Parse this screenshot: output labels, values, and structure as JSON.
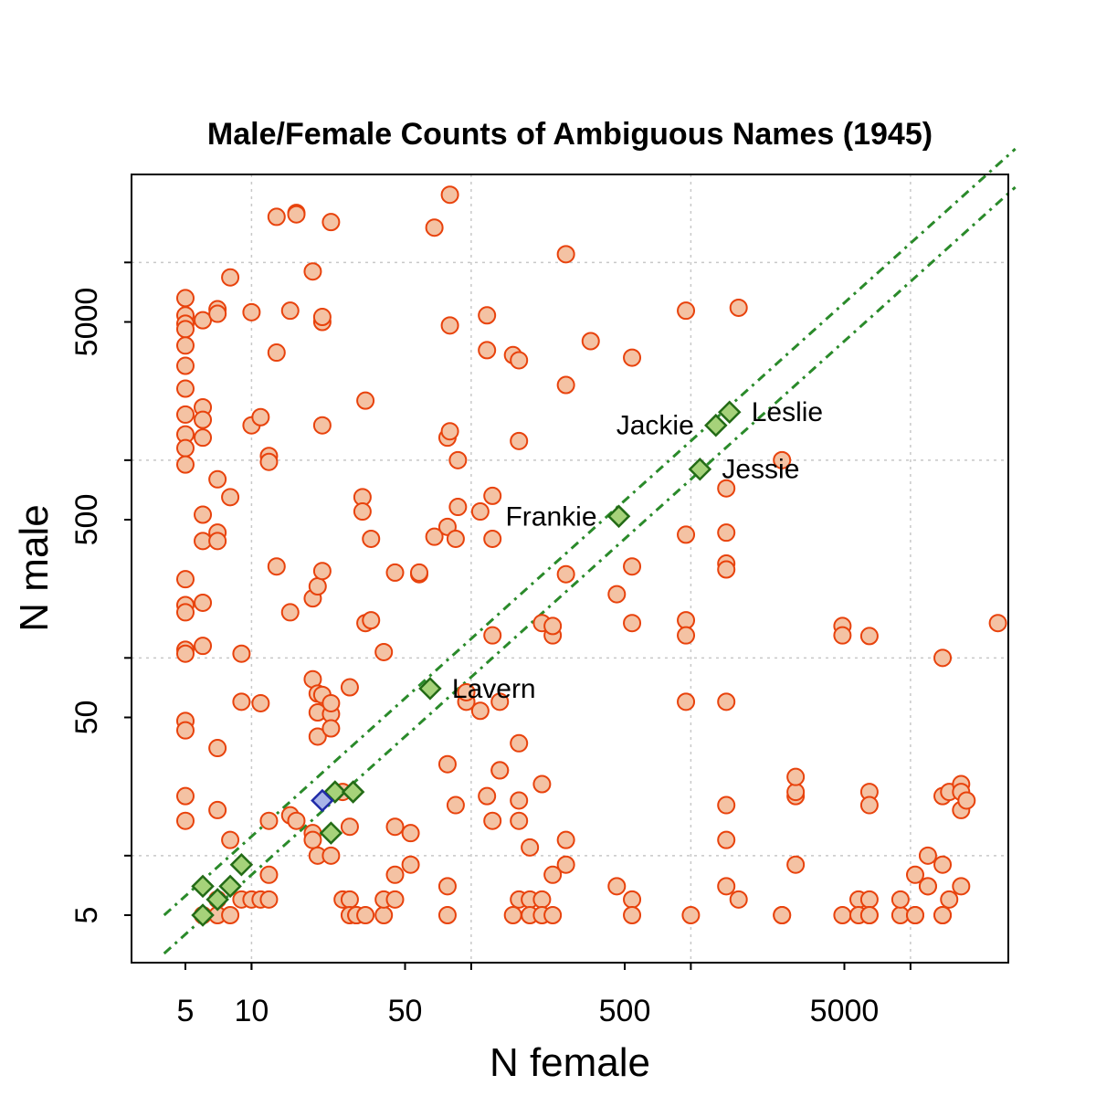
{
  "chart_data": {
    "type": "scatter",
    "title": "Male/Female Counts of Ambiguous Names (1945)",
    "xlabel": "N female",
    "ylabel": "N male",
    "scale": "log",
    "xlim": [
      3.3,
      25000
    ],
    "ylim": [
      3.3,
      25000
    ],
    "x_ticks": [
      5,
      10,
      50,
      500,
      5000
    ],
    "y_ticks": [
      5,
      50,
      500,
      5000
    ],
    "grid": true,
    "colors": {
      "points_fill": "#f4c2a3",
      "points_stroke": "#e8420c",
      "highlight_fill": "#a6d27a",
      "highlight_stroke": "#236b16",
      "focus_fill": "#a8b4e8",
      "focus_stroke": "#1f2aa8",
      "reference_lines": "#2a8a2a"
    },
    "reference_lines": [
      {
        "style": "dash-dot",
        "male_to_female_ratio": 1.25
      },
      {
        "style": "dash-dot",
        "male_to_female_ratio": 0.8
      }
    ],
    "series": [
      {
        "marker": "circle",
        "points": [
          [
            5,
            6600
          ],
          [
            5,
            5400
          ],
          [
            5,
            4900
          ],
          [
            5,
            4600
          ],
          [
            5,
            3800
          ],
          [
            5,
            3000
          ],
          [
            5,
            2300
          ],
          [
            5,
            1700
          ],
          [
            5,
            1350
          ],
          [
            5,
            1150
          ],
          [
            5,
            950
          ],
          [
            5,
            250
          ],
          [
            5,
            185
          ],
          [
            5,
            170
          ],
          [
            5,
            110
          ],
          [
            5,
            105
          ],
          [
            5,
            48
          ],
          [
            5,
            43
          ],
          [
            5,
            20
          ],
          [
            5,
            15
          ],
          [
            6,
            5100
          ],
          [
            6,
            1850
          ],
          [
            6,
            1600
          ],
          [
            6,
            1300
          ],
          [
            6,
            530
          ],
          [
            6,
            390
          ],
          [
            6,
            190
          ],
          [
            6,
            115
          ],
          [
            6,
            5
          ],
          [
            7,
            5800
          ],
          [
            7,
            5500
          ],
          [
            7,
            800
          ],
          [
            7,
            430
          ],
          [
            7,
            390
          ],
          [
            7,
            35
          ],
          [
            7,
            17
          ],
          [
            7,
            5
          ],
          [
            7,
            6
          ],
          [
            8,
            8400
          ],
          [
            8,
            650
          ],
          [
            8,
            12
          ],
          [
            8,
            5
          ],
          [
            9,
            105
          ],
          [
            9,
            60
          ],
          [
            9,
            6
          ],
          [
            10,
            5600
          ],
          [
            10,
            1500
          ],
          [
            10,
            6
          ],
          [
            11,
            1650
          ],
          [
            11,
            59
          ],
          [
            11,
            6
          ],
          [
            12,
            1050
          ],
          [
            12,
            980
          ],
          [
            12,
            15
          ],
          [
            12,
            8
          ],
          [
            12,
            6
          ],
          [
            13,
            17000
          ],
          [
            13,
            290
          ],
          [
            13,
            3500
          ],
          [
            15,
            5700
          ],
          [
            15,
            170
          ],
          [
            15,
            16
          ],
          [
            16,
            17800
          ],
          [
            16,
            17500
          ],
          [
            16,
            15
          ],
          [
            19,
            13
          ],
          [
            19,
            200
          ],
          [
            19,
            9000
          ],
          [
            19,
            78
          ],
          [
            19,
            12
          ],
          [
            20,
            230
          ],
          [
            20,
            40
          ],
          [
            20,
            66
          ],
          [
            20,
            53
          ],
          [
            20,
            10
          ],
          [
            21,
            5000
          ],
          [
            21,
            5300
          ],
          [
            21,
            65
          ],
          [
            21,
            1500
          ],
          [
            21,
            275
          ],
          [
            23,
            16000
          ],
          [
            23,
            10
          ],
          [
            23,
            52
          ],
          [
            23,
            59
          ],
          [
            23,
            44
          ],
          [
            26,
            6
          ],
          [
            26,
            21
          ],
          [
            28,
            71
          ],
          [
            28,
            6
          ],
          [
            28,
            14
          ],
          [
            28,
            5
          ],
          [
            30,
            5
          ],
          [
            30,
            5
          ],
          [
            32,
            650
          ],
          [
            32,
            550
          ],
          [
            33,
            2000
          ],
          [
            33,
            150
          ],
          [
            33,
            5
          ],
          [
            35,
            400
          ],
          [
            35,
            155
          ],
          [
            40,
            107
          ],
          [
            40,
            5
          ],
          [
            40,
            6
          ],
          [
            45,
            270
          ],
          [
            45,
            14
          ],
          [
            45,
            6
          ],
          [
            45,
            8
          ],
          [
            53,
            9
          ],
          [
            53,
            13
          ],
          [
            58,
            265
          ],
          [
            58,
            270
          ],
          [
            68,
            15000
          ],
          [
            68,
            410
          ],
          [
            78,
            29
          ],
          [
            78,
            460
          ],
          [
            78,
            1300
          ],
          [
            78,
            7
          ],
          [
            78,
            5
          ],
          [
            80,
            22000
          ],
          [
            80,
            1400
          ],
          [
            80,
            4800
          ],
          [
            85,
            400
          ],
          [
            85,
            18
          ],
          [
            87,
            1000
          ],
          [
            87,
            580
          ],
          [
            95,
            60
          ],
          [
            95,
            67
          ],
          [
            110,
            54
          ],
          [
            110,
            550
          ],
          [
            118,
            5400
          ],
          [
            118,
            3600
          ],
          [
            118,
            20
          ],
          [
            125,
            15
          ],
          [
            125,
            130
          ],
          [
            125,
            400
          ],
          [
            125,
            660
          ],
          [
            135,
            27
          ],
          [
            135,
            27
          ],
          [
            135,
            60
          ],
          [
            155,
            3400
          ],
          [
            155,
            5
          ],
          [
            165,
            3200
          ],
          [
            165,
            1250
          ],
          [
            165,
            37
          ],
          [
            165,
            19
          ],
          [
            165,
            15
          ],
          [
            165,
            6
          ],
          [
            185,
            11
          ],
          [
            185,
            6
          ],
          [
            185,
            5
          ],
          [
            210,
            23
          ],
          [
            210,
            6
          ],
          [
            210,
            5
          ],
          [
            210,
            150
          ],
          [
            235,
            130
          ],
          [
            235,
            145
          ],
          [
            235,
            8
          ],
          [
            235,
            5
          ],
          [
            270,
            265
          ],
          [
            270,
            9
          ],
          [
            270,
            12
          ],
          [
            270,
            2400
          ],
          [
            270,
            11000
          ],
          [
            350,
            4000
          ],
          [
            460,
            7
          ],
          [
            460,
            210
          ],
          [
            540,
            6
          ],
          [
            540,
            290
          ],
          [
            540,
            5
          ],
          [
            540,
            150
          ],
          [
            540,
            3300
          ],
          [
            950,
            5700
          ],
          [
            950,
            420
          ],
          [
            950,
            155
          ],
          [
            950,
            130
          ],
          [
            950,
            60
          ],
          [
            1000,
            5
          ],
          [
            1450,
            7
          ],
          [
            1450,
            60
          ],
          [
            1450,
            18
          ],
          [
            1450,
            12
          ],
          [
            1450,
            430
          ],
          [
            1450,
            300
          ],
          [
            1450,
            280
          ],
          [
            1450,
            720
          ],
          [
            1650,
            5900
          ],
          [
            1650,
            6
          ],
          [
            2600,
            1000
          ],
          [
            2600,
            5
          ],
          [
            2600,
            5
          ],
          [
            3000,
            20
          ],
          [
            3000,
            21
          ],
          [
            3000,
            25
          ],
          [
            3000,
            9
          ],
          [
            4900,
            145
          ],
          [
            4900,
            130
          ],
          [
            4900,
            5
          ],
          [
            5800,
            6
          ],
          [
            5800,
            5
          ],
          [
            6500,
            129
          ],
          [
            6500,
            21
          ],
          [
            6500,
            18
          ],
          [
            6500,
            6
          ],
          [
            6500,
            5
          ],
          [
            6500,
            5
          ],
          [
            9000,
            5
          ],
          [
            9000,
            6
          ],
          [
            10500,
            8
          ],
          [
            10500,
            5
          ],
          [
            10500,
            5
          ],
          [
            12000,
            10
          ],
          [
            12000,
            7
          ],
          [
            12000,
            7
          ],
          [
            14000,
            20
          ],
          [
            14000,
            5
          ],
          [
            14000,
            5
          ],
          [
            14000,
            100
          ],
          [
            14000,
            9
          ],
          [
            15000,
            6
          ],
          [
            15000,
            21
          ],
          [
            17000,
            23
          ],
          [
            17000,
            17
          ],
          [
            17000,
            21
          ],
          [
            17000,
            7
          ],
          [
            18000,
            19
          ],
          [
            25000,
            150
          ]
        ]
      },
      {
        "marker": "diamond",
        "points": [
          [
            6,
            5
          ],
          [
            6,
            7
          ],
          [
            7,
            6
          ],
          [
            8,
            7
          ],
          [
            9,
            9
          ],
          [
            23,
            13
          ],
          [
            24,
            21
          ],
          [
            29,
            21
          ],
          [
            65,
            70
          ],
          [
            470,
            520
          ],
          [
            1100,
            900
          ],
          [
            1300,
            1500
          ],
          [
            1500,
            1750
          ]
        ]
      },
      {
        "marker": "diamond-focus",
        "points": [
          [
            21,
            19
          ]
        ]
      }
    ],
    "annotations": [
      {
        "label": "Leslie",
        "x": 1500,
        "y": 1750,
        "side": "right"
      },
      {
        "label": "Jackie",
        "x": 1300,
        "y": 1500,
        "side": "left"
      },
      {
        "label": "Jessie",
        "x": 1100,
        "y": 900,
        "side": "right"
      },
      {
        "label": "Frankie",
        "x": 470,
        "y": 520,
        "side": "left"
      },
      {
        "label": "Lavern",
        "x": 65,
        "y": 70,
        "side": "right"
      }
    ]
  }
}
